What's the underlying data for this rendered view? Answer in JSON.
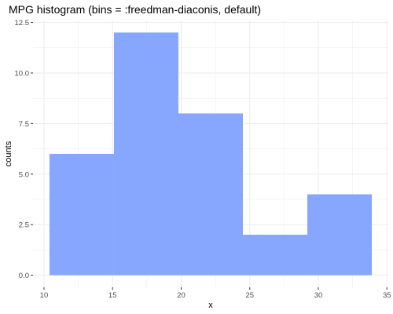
{
  "chart_data": {
    "type": "bar",
    "title": "MPG histogram (bins = :freedman-diaconis, default)",
    "xlabel": "x",
    "ylabel": "counts",
    "bins": [
      {
        "x0": 10.4,
        "x1": 15.1,
        "count": 6
      },
      {
        "x0": 15.1,
        "x1": 19.8,
        "count": 12
      },
      {
        "x0": 19.8,
        "x1": 24.5,
        "count": 8
      },
      {
        "x0": 24.5,
        "x1": 29.2,
        "count": 2
      },
      {
        "x0": 29.2,
        "x1": 33.9,
        "count": 4
      }
    ],
    "xlim": [
      9.2,
      35.1
    ],
    "ylim": [
      -0.6,
      12.6
    ],
    "xticks": [
      10,
      15,
      20,
      25,
      30,
      35
    ],
    "xtick_labels": [
      "10",
      "15",
      "20",
      "25",
      "30",
      "35"
    ],
    "yticks": [
      0,
      2.5,
      5,
      7.5,
      10,
      12.5
    ],
    "ytick_labels": [
      "0.0",
      "2.5",
      "5.0",
      "7.5",
      "10.0",
      "12.5"
    ],
    "grid": true,
    "bar_color": "#87a6fd",
    "grid_color": "#ebebeb"
  }
}
